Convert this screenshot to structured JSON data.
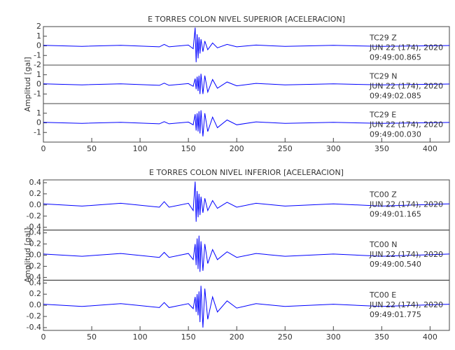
{
  "chart_data": [
    {
      "type": "line",
      "title": "E TORRES COLON NIVEL SUPERIOR [ACELERACION]",
      "y_label": "Amplitud [gal]",
      "xlim": [
        0,
        420
      ],
      "xticks": [
        0,
        50,
        100,
        150,
        200,
        250,
        300,
        350,
        400
      ],
      "x": [
        0,
        40,
        80,
        120,
        125,
        130,
        150,
        155,
        157,
        158,
        159,
        160,
        161,
        162,
        163,
        165,
        167,
        170,
        175,
        180,
        190,
        200,
        220,
        250,
        300,
        350,
        420
      ],
      "series": [
        {
          "color": "#0000ff",
          "ylim": [
            -2,
            2
          ],
          "yticks": [
            -2,
            -1,
            0,
            1,
            2
          ],
          "station": "TC29   Z",
          "date": "JUN 22 (174), 2020",
          "time": "09:49:00.865",
          "values": [
            0.05,
            -0.05,
            0.06,
            -0.1,
            0.15,
            -0.1,
            0.08,
            -0.3,
            1.9,
            -1.7,
            1.2,
            -1.3,
            0.9,
            -0.8,
            0.7,
            -0.6,
            0.5,
            -0.4,
            0.3,
            -0.2,
            0.15,
            -0.1,
            0.08,
            -0.06,
            0.05,
            -0.05,
            0.04
          ]
        },
        {
          "color": "#0000ff",
          "ylim": [
            -2,
            2
          ],
          "yticks": [
            -1,
            0,
            1
          ],
          "station": "TC29   N",
          "date": "JUN 22 (174), 2020",
          "time": "09:49:02.085",
          "values": [
            0.05,
            -0.05,
            0.06,
            -0.1,
            0.12,
            -0.1,
            0.08,
            -0.2,
            0.6,
            -0.5,
            0.8,
            -0.7,
            0.9,
            -1.0,
            1.1,
            -1.0,
            0.9,
            -0.8,
            0.5,
            -0.4,
            0.25,
            -0.15,
            0.1,
            -0.06,
            0.05,
            -0.05,
            0.04
          ]
        },
        {
          "color": "#0000ff",
          "ylim": [
            -2,
            2
          ],
          "yticks": [
            -1,
            0,
            1
          ],
          "station": "TC29   E",
          "date": "JUN 22 (174), 2020",
          "time": "09:49:00.030",
          "values": [
            0.05,
            -0.05,
            0.06,
            -0.1,
            0.12,
            -0.1,
            0.08,
            -0.2,
            0.9,
            -0.8,
            1.0,
            -0.9,
            1.2,
            -1.1,
            1.3,
            -1.4,
            1.0,
            -0.9,
            0.6,
            -0.5,
            0.3,
            -0.2,
            0.1,
            -0.06,
            0.05,
            -0.05,
            0.04
          ]
        }
      ]
    },
    {
      "type": "line",
      "title": "E TORRES COLON NIVEL INFERIOR [ACELERACION]",
      "y_label": "Amplitud [gal]",
      "xlim": [
        0,
        420
      ],
      "xticks": [
        0,
        50,
        100,
        150,
        200,
        250,
        300,
        350,
        400
      ],
      "x": [
        0,
        40,
        80,
        120,
        125,
        130,
        150,
        155,
        157,
        158,
        159,
        160,
        161,
        162,
        163,
        165,
        167,
        170,
        175,
        180,
        190,
        200,
        220,
        250,
        300,
        350,
        420
      ],
      "series": [
        {
          "color": "#0000ff",
          "ylim": [
            -0.45,
            0.45
          ],
          "yticks": [
            -0.4,
            -0.2,
            {
              "value": 0,
              "label": "0.0"
            },
            0.2,
            0.4
          ],
          "station": "TC00   Z",
          "date": "JUN 22 (174), 2020",
          "time": "09:49:01.165",
          "values": [
            0.02,
            -0.02,
            0.03,
            -0.04,
            0.06,
            -0.04,
            0.03,
            -0.1,
            0.42,
            -0.3,
            0.25,
            -0.22,
            0.2,
            -0.18,
            0.15,
            -0.14,
            0.12,
            -0.1,
            0.08,
            -0.06,
            0.05,
            -0.04,
            0.03,
            -0.02,
            0.02,
            -0.02,
            0.02
          ]
        },
        {
          "color": "#0000ff",
          "ylim": [
            -0.45,
            0.45
          ],
          "yticks": [
            -0.4,
            -0.2,
            {
              "value": 0,
              "label": "0.0"
            },
            0.2,
            0.4
          ],
          "station": "TC00   N",
          "date": "JUN 22 (174), 2020",
          "time": "09:49:00.540",
          "values": [
            0.02,
            -0.02,
            0.03,
            -0.04,
            0.05,
            -0.04,
            0.03,
            -0.08,
            0.2,
            -0.18,
            0.3,
            -0.25,
            0.35,
            -0.3,
            0.25,
            -0.28,
            0.2,
            -0.15,
            0.1,
            -0.08,
            0.06,
            -0.04,
            0.03,
            -0.02,
            0.02,
            -0.02,
            0.02
          ]
        },
        {
          "color": "#0000ff",
          "ylim": [
            -0.45,
            0.45
          ],
          "yticks": [
            -0.4,
            -0.2,
            {
              "value": 0,
              "label": "0.0"
            },
            0.2,
            0.4
          ],
          "station": "TC00   E",
          "date": "JUN 22 (174), 2020",
          "time": "09:49:01.775",
          "values": [
            0.02,
            -0.02,
            0.03,
            -0.04,
            0.05,
            -0.04,
            0.03,
            -0.06,
            0.15,
            -0.12,
            0.2,
            -0.18,
            0.25,
            -0.3,
            0.35,
            -0.4,
            0.3,
            -0.25,
            0.15,
            -0.12,
            0.08,
            -0.05,
            0.03,
            -0.02,
            0.02,
            -0.02,
            0.02
          ]
        }
      ]
    }
  ]
}
